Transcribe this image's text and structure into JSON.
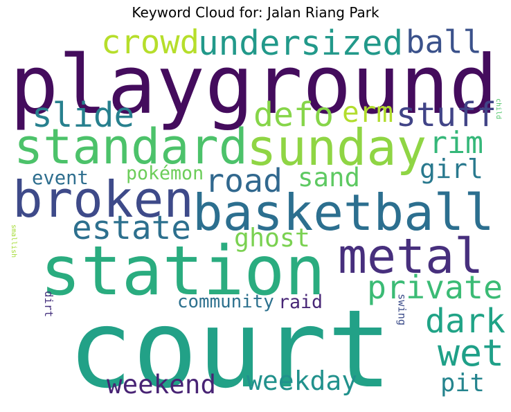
{
  "title": "Keyword Cloud for: Jalan Riang Park",
  "words": [
    {
      "text": "playground",
      "color": "#440c5d"
    },
    {
      "text": "court",
      "color": "#22a187"
    },
    {
      "text": "station",
      "color": "#2aac7f"
    },
    {
      "text": "basketball",
      "color": "#2c6f8f"
    },
    {
      "text": "standard",
      "color": "#4cc26a"
    },
    {
      "text": "sunday",
      "color": "#8fd544"
    },
    {
      "text": "broken",
      "color": "#3e4a89"
    },
    {
      "text": "metal",
      "color": "#472f7d"
    },
    {
      "text": "undersized",
      "color": "#22998a"
    },
    {
      "text": "crowd",
      "color": "#b6de2b"
    },
    {
      "text": "ball",
      "color": "#3b528b"
    },
    {
      "text": "slide",
      "color": "#27808e"
    },
    {
      "text": "defo",
      "color": "#86d549"
    },
    {
      "text": "stuff",
      "color": "#414487"
    },
    {
      "text": "erm",
      "color": "#b2dd2d"
    },
    {
      "text": "rim",
      "color": "#35b779"
    },
    {
      "text": "road",
      "color": "#31688e"
    },
    {
      "text": "sand",
      "color": "#5ec962"
    },
    {
      "text": "girl",
      "color": "#29798e"
    },
    {
      "text": "child",
      "color": "#50c46a"
    },
    {
      "text": "event",
      "color": "#2e6e8e"
    },
    {
      "text": "pokémon",
      "color": "#6ccd5a"
    },
    {
      "text": "estate",
      "color": "#2d708e"
    },
    {
      "text": "smallish",
      "color": "#a5db36"
    },
    {
      "text": "ghost",
      "color": "#7ad151"
    },
    {
      "text": "private",
      "color": "#3bbb75"
    },
    {
      "text": "dark",
      "color": "#20a386"
    },
    {
      "text": "dirt",
      "color": "#46327e"
    },
    {
      "text": "swing",
      "color": "#3d4d8a"
    },
    {
      "text": "community",
      "color": "#2d718e"
    },
    {
      "text": "raid",
      "color": "#482777"
    },
    {
      "text": "wet",
      "color": "#1fa088"
    },
    {
      "text": "weekend",
      "color": "#482374"
    },
    {
      "text": "weekday",
      "color": "#21918c"
    },
    {
      "text": "pit",
      "color": "#25848e"
    }
  ]
}
